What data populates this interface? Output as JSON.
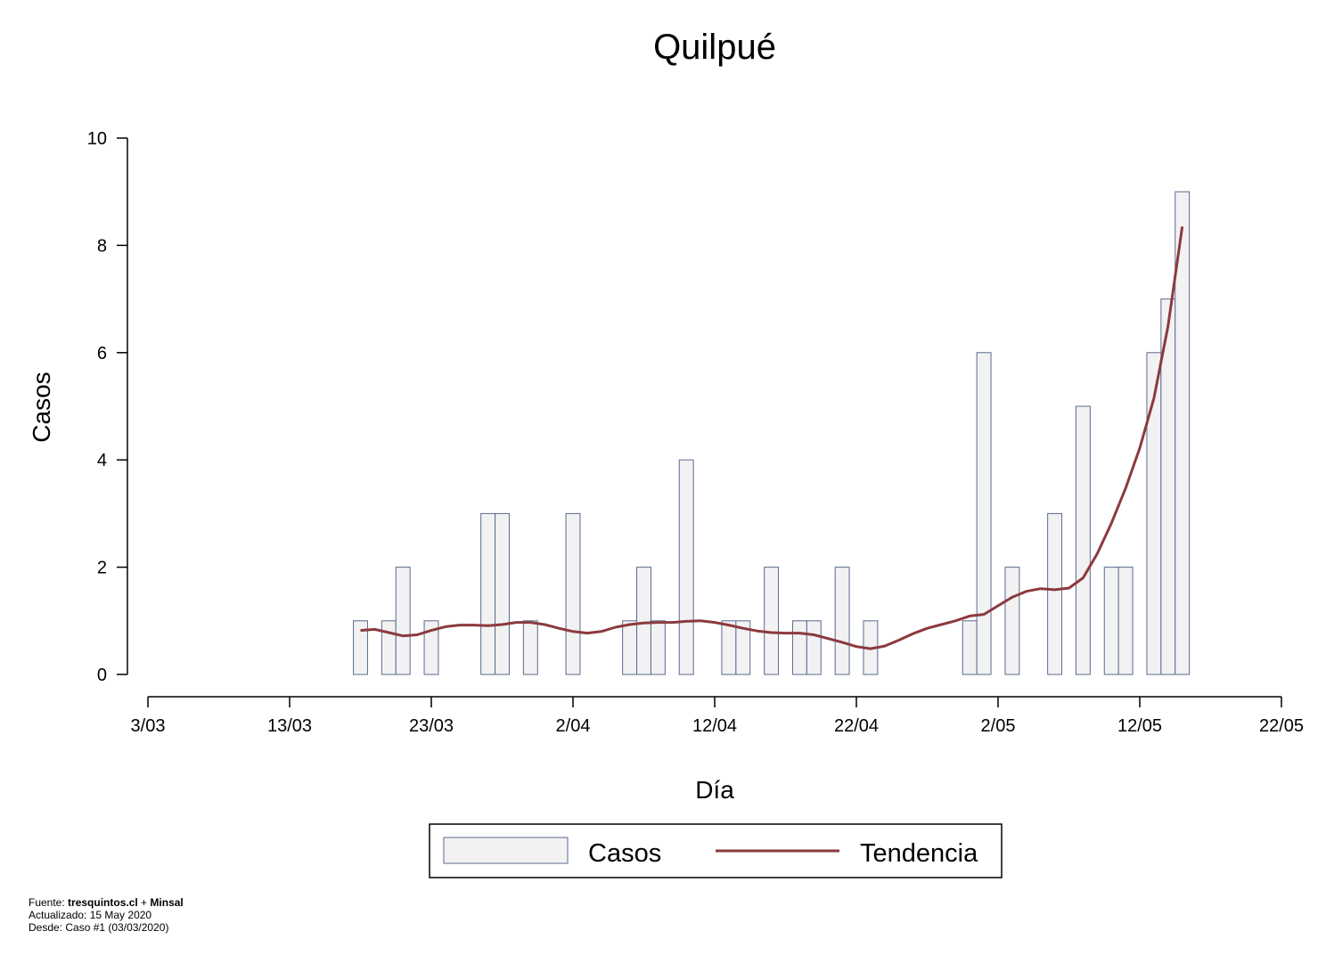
{
  "chart_data": {
    "type": "bar",
    "title": "Quilpué",
    "xlabel": "Día",
    "ylabel": "Casos",
    "x_tick_labels": [
      "3/03",
      "13/03",
      "23/03",
      "2/04",
      "12/04",
      "22/04",
      "2/05",
      "12/05",
      "22/05"
    ],
    "x_tick_days": [
      0,
      10,
      20,
      30,
      40,
      50,
      60,
      70,
      80
    ],
    "y_ticks": [
      0,
      2,
      4,
      6,
      8,
      10
    ],
    "xlim": [
      "2020-03-03",
      "2020-05-22"
    ],
    "ylim": [
      0,
      10
    ],
    "grid": false,
    "legend_position": "bottom",
    "series": [
      {
        "name": "Casos",
        "kind": "bar",
        "color": "#f2f2f2",
        "edge_color": "#5a6a8f",
        "points": [
          {
            "x": "2020-03-18",
            "y": 1
          },
          {
            "x": "2020-03-20",
            "y": 1
          },
          {
            "x": "2020-03-21",
            "y": 2
          },
          {
            "x": "2020-03-23",
            "y": 1
          },
          {
            "x": "2020-03-27",
            "y": 3
          },
          {
            "x": "2020-03-28",
            "y": 3
          },
          {
            "x": "2020-03-30",
            "y": 1
          },
          {
            "x": "2020-04-02",
            "y": 3
          },
          {
            "x": "2020-04-06",
            "y": 1
          },
          {
            "x": "2020-04-07",
            "y": 2
          },
          {
            "x": "2020-04-08",
            "y": 1
          },
          {
            "x": "2020-04-10",
            "y": 4
          },
          {
            "x": "2020-04-13",
            "y": 1
          },
          {
            "x": "2020-04-14",
            "y": 1
          },
          {
            "x": "2020-04-16",
            "y": 2
          },
          {
            "x": "2020-04-18",
            "y": 1
          },
          {
            "x": "2020-04-19",
            "y": 1
          },
          {
            "x": "2020-04-21",
            "y": 2
          },
          {
            "x": "2020-04-23",
            "y": 1
          },
          {
            "x": "2020-04-30",
            "y": 1
          },
          {
            "x": "2020-05-01",
            "y": 6
          },
          {
            "x": "2020-05-03",
            "y": 2
          },
          {
            "x": "2020-05-06",
            "y": 3
          },
          {
            "x": "2020-05-08",
            "y": 5
          },
          {
            "x": "2020-05-10",
            "y": 2
          },
          {
            "x": "2020-05-11",
            "y": 2
          },
          {
            "x": "2020-05-13",
            "y": 6
          },
          {
            "x": "2020-05-14",
            "y": 7
          },
          {
            "x": "2020-05-15",
            "y": 9
          }
        ]
      },
      {
        "name": "Tendencia",
        "kind": "line",
        "color": "#8b3a3e",
        "points": [
          {
            "x": "2020-03-18",
            "y": 0.82
          },
          {
            "x": "2020-03-19",
            "y": 0.84
          },
          {
            "x": "2020-03-20",
            "y": 0.78
          },
          {
            "x": "2020-03-21",
            "y": 0.72
          },
          {
            "x": "2020-03-22",
            "y": 0.74
          },
          {
            "x": "2020-03-23",
            "y": 0.82
          },
          {
            "x": "2020-03-24",
            "y": 0.89
          },
          {
            "x": "2020-03-25",
            "y": 0.92
          },
          {
            "x": "2020-03-26",
            "y": 0.92
          },
          {
            "x": "2020-03-27",
            "y": 0.91
          },
          {
            "x": "2020-03-28",
            "y": 0.93
          },
          {
            "x": "2020-03-29",
            "y": 0.97
          },
          {
            "x": "2020-03-30",
            "y": 0.97
          },
          {
            "x": "2020-03-31",
            "y": 0.93
          },
          {
            "x": "2020-04-01",
            "y": 0.86
          },
          {
            "x": "2020-04-02",
            "y": 0.8
          },
          {
            "x": "2020-04-03",
            "y": 0.77
          },
          {
            "x": "2020-04-04",
            "y": 0.8
          },
          {
            "x": "2020-04-05",
            "y": 0.88
          },
          {
            "x": "2020-04-06",
            "y": 0.93
          },
          {
            "x": "2020-04-07",
            "y": 0.96
          },
          {
            "x": "2020-04-08",
            "y": 0.97
          },
          {
            "x": "2020-04-09",
            "y": 0.97
          },
          {
            "x": "2020-04-10",
            "y": 0.99
          },
          {
            "x": "2020-04-11",
            "y": 1.0
          },
          {
            "x": "2020-04-12",
            "y": 0.97
          },
          {
            "x": "2020-04-13",
            "y": 0.92
          },
          {
            "x": "2020-04-14",
            "y": 0.86
          },
          {
            "x": "2020-04-15",
            "y": 0.81
          },
          {
            "x": "2020-04-16",
            "y": 0.78
          },
          {
            "x": "2020-04-17",
            "y": 0.77
          },
          {
            "x": "2020-04-18",
            "y": 0.77
          },
          {
            "x": "2020-04-19",
            "y": 0.74
          },
          {
            "x": "2020-04-20",
            "y": 0.67
          },
          {
            "x": "2020-04-21",
            "y": 0.6
          },
          {
            "x": "2020-04-22",
            "y": 0.52
          },
          {
            "x": "2020-04-23",
            "y": 0.48
          },
          {
            "x": "2020-04-24",
            "y": 0.53
          },
          {
            "x": "2020-04-25",
            "y": 0.64
          },
          {
            "x": "2020-04-26",
            "y": 0.76
          },
          {
            "x": "2020-04-27",
            "y": 0.86
          },
          {
            "x": "2020-04-28",
            "y": 0.93
          },
          {
            "x": "2020-04-29",
            "y": 1.0
          },
          {
            "x": "2020-04-30",
            "y": 1.09
          },
          {
            "x": "2020-05-01",
            "y": 1.12
          },
          {
            "x": "2020-05-02",
            "y": 1.28
          },
          {
            "x": "2020-05-03",
            "y": 1.44
          },
          {
            "x": "2020-05-04",
            "y": 1.55
          },
          {
            "x": "2020-05-05",
            "y": 1.6
          },
          {
            "x": "2020-05-06",
            "y": 1.58
          },
          {
            "x": "2020-05-07",
            "y": 1.61
          },
          {
            "x": "2020-05-08",
            "y": 1.8
          },
          {
            "x": "2020-05-09",
            "y": 2.25
          },
          {
            "x": "2020-05-10",
            "y": 2.82
          },
          {
            "x": "2020-05-11",
            "y": 3.47
          },
          {
            "x": "2020-05-12",
            "y": 4.22
          },
          {
            "x": "2020-05-13",
            "y": 5.15
          },
          {
            "x": "2020-05-14",
            "y": 6.5
          },
          {
            "x": "2020-05-15",
            "y": 8.35
          }
        ]
      }
    ],
    "legend": [
      "Casos",
      "Tendencia"
    ]
  },
  "footer": {
    "source_prefix": "Fuente: ",
    "source_site": "tresquintos.cl",
    "source_join": " + ",
    "source_org": "Minsal",
    "updated": "Actualizado: 15 May 2020",
    "since": "Desde: Caso #1  (03/03/2020)"
  }
}
